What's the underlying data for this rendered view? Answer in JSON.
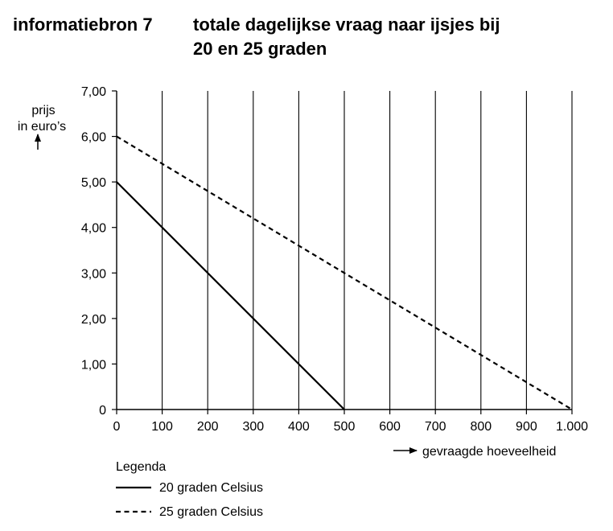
{
  "header": {
    "source_label": "informatiebron 7",
    "title_line1": "totale dagelijkse vraag naar ijsjes bij",
    "title_line2": "20 en 25 graden"
  },
  "chart_data": {
    "type": "line",
    "ylabel_line1": "prijs",
    "ylabel_line2": "in euro’s",
    "xlabel": "gevraagde hoeveelheid",
    "xlim": [
      0,
      1000
    ],
    "ylim": [
      0,
      7
    ],
    "x_ticks": [
      0,
      100,
      200,
      300,
      400,
      500,
      600,
      700,
      800,
      900,
      1000
    ],
    "x_tick_labels": [
      "0",
      "100",
      "200",
      "300",
      "400",
      "500",
      "600",
      "700",
      "800",
      "900",
      "1.000"
    ],
    "y_ticks": [
      0,
      1,
      2,
      3,
      4,
      5,
      6,
      7
    ],
    "y_tick_labels": [
      "0",
      "1,00",
      "2,00",
      "3,00",
      "4,00",
      "5,00",
      "6,00",
      "7,00"
    ],
    "grid": "vertical",
    "legend_title": "Legenda",
    "legend_position": "bottom-left",
    "series": [
      {
        "name": "20 graden Celsius",
        "style": "solid",
        "x": [
          0,
          500
        ],
        "y": [
          5,
          0
        ]
      },
      {
        "name": "25 graden Celsius",
        "style": "dashed",
        "x": [
          0,
          1000
        ],
        "y": [
          6,
          0
        ]
      }
    ],
    "colors": {
      "line": "#000000",
      "background": "#ffffff"
    }
  }
}
